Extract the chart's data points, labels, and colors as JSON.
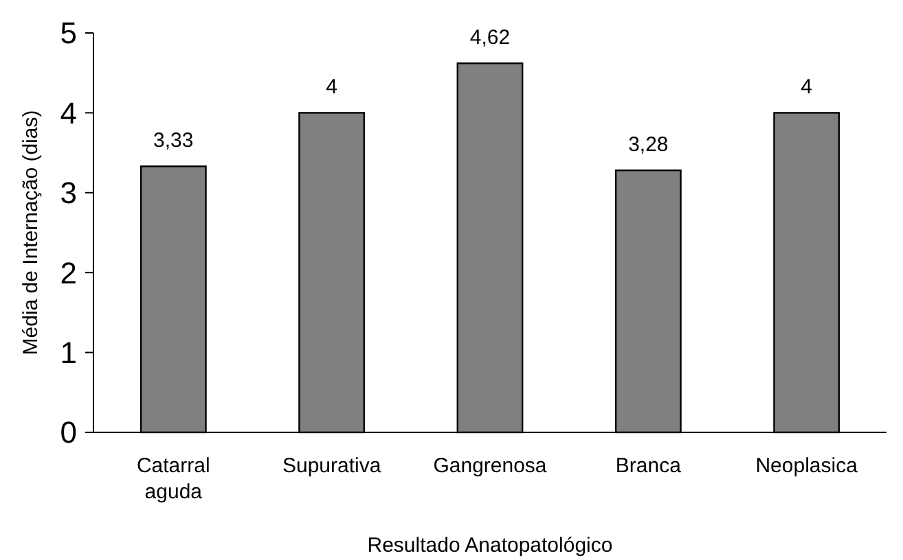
{
  "chart_data": {
    "type": "bar",
    "xlabel": "Resultado Anatopatológico",
    "ylabel": "Média de Internação (dias)",
    "categories": [
      "Catarral aguda",
      "Supurativa",
      "Gangrenosa",
      "Branca",
      "Neoplasica"
    ],
    "values": [
      3.33,
      4,
      4.62,
      3.28,
      4
    ],
    "value_labels": [
      "3,33",
      "4",
      "4,62",
      "3,28",
      "4"
    ],
    "color": "#808080",
    "ylim": [
      0,
      5
    ],
    "yticks": [
      0,
      1,
      2,
      3,
      4,
      5
    ],
    "grid": false
  }
}
